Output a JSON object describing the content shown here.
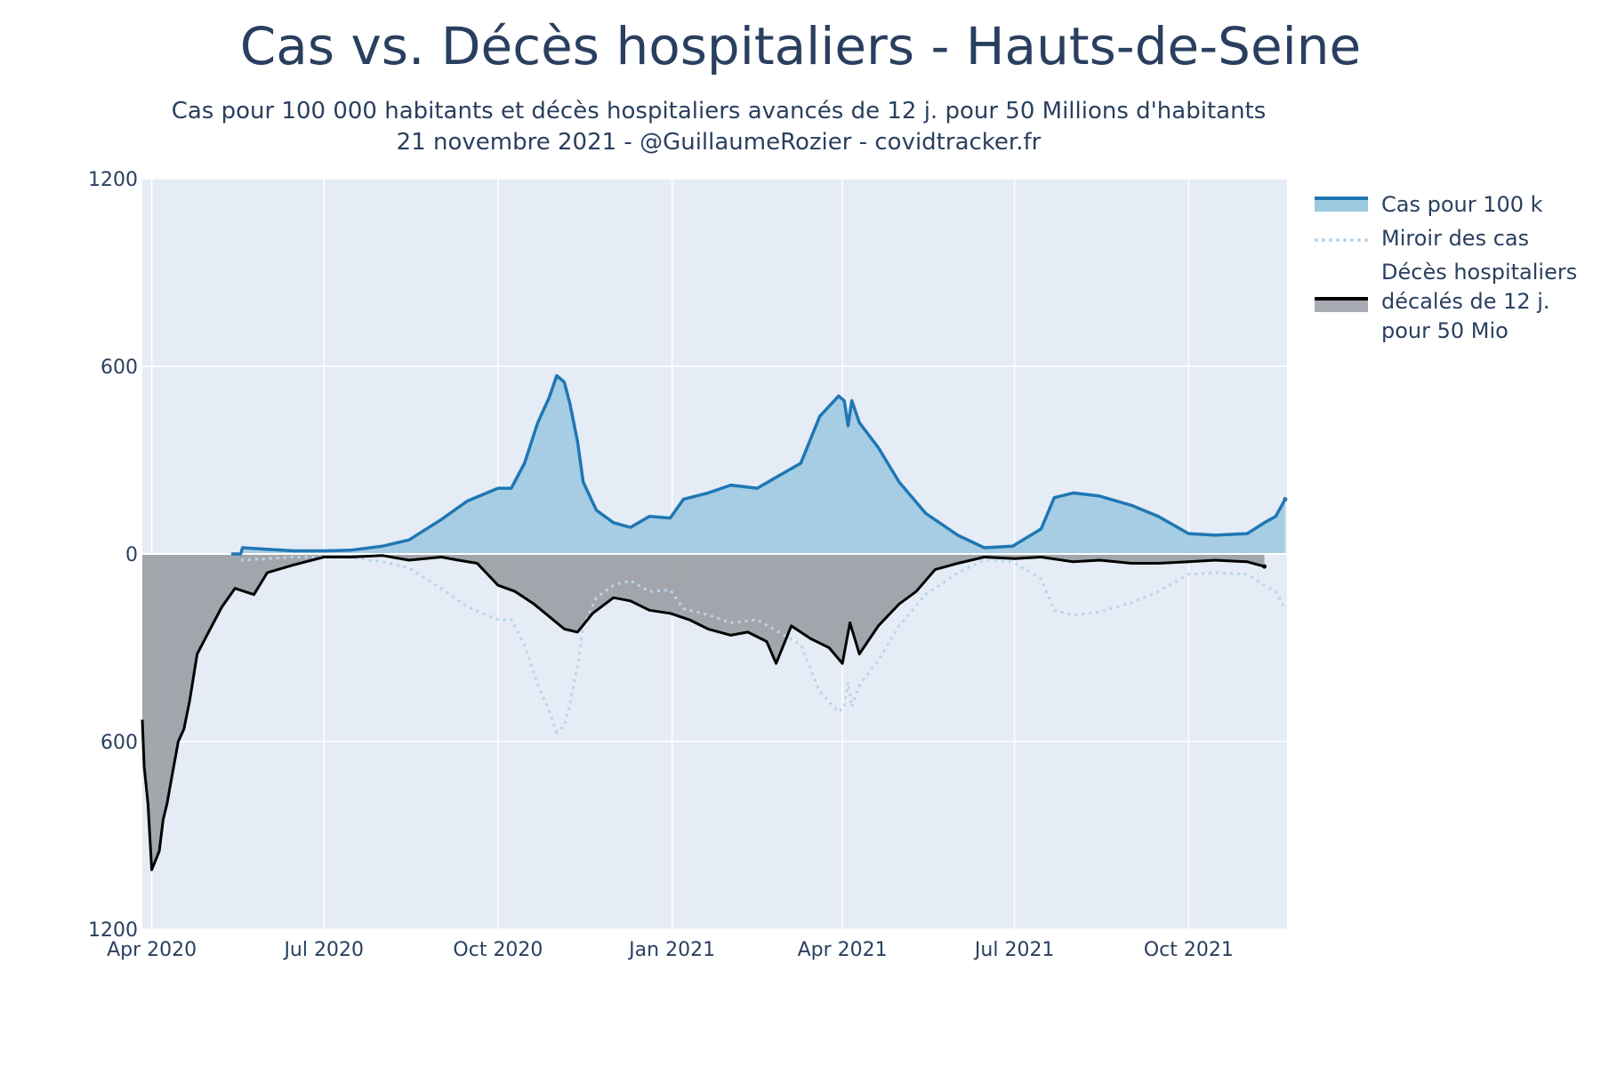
{
  "title": "Cas vs. Décès hospitaliers - Hauts-de-Seine",
  "subtitle_line1": "Cas pour 100 000 habitants et décès hospitaliers avancés de 12 j. pour 50 Millions d'habitants",
  "subtitle_line2": "21 novembre 2021 - @GuillaumeRozier - covidtracker.fr",
  "legend": {
    "cases": "Cas pour 100 k",
    "mirror": "Miroir des cas",
    "deaths_line1": "Décès hospitaliers",
    "deaths_line2": "décalés de 12 j.",
    "deaths_line3": "pour 50 Mio"
  },
  "colors": {
    "plot_bg": "#e5ecf6",
    "cases_line": "#1f77b4",
    "cases_fill": "#9ecae1",
    "mirror_line": "#b8d4ea",
    "deaths_line": "#000000",
    "deaths_fill": "#9a9ea4",
    "text": "#2a3f5f"
  },
  "chart_data": {
    "type": "area",
    "x_axis": {
      "type": "date",
      "range": [
        "2020-03-27",
        "2021-11-22"
      ],
      "tick_labels": [
        "Apr 2020",
        "Jul 2020",
        "Oct 2020",
        "Jan 2021",
        "Apr 2021",
        "Jul 2021",
        "Oct 2021"
      ],
      "tick_dates": [
        "2020-04-01",
        "2020-07-01",
        "2020-10-01",
        "2021-01-01",
        "2021-04-01",
        "2021-07-01",
        "2021-10-01"
      ]
    },
    "y_axis": {
      "range": [
        -1200,
        1200
      ],
      "tick_values": [
        1200,
        600,
        0,
        -600,
        -1200
      ],
      "tick_labels": [
        "1200",
        "600",
        "0",
        "600",
        "1200"
      ]
    },
    "grid": true,
    "legend_position": "right",
    "series": [
      {
        "name": "Cas pour 100 k",
        "style": "line+fill",
        "points": [
          [
            "2020-05-13",
            0
          ],
          [
            "2020-05-18",
            0
          ],
          [
            "2020-05-19",
            20
          ],
          [
            "2020-06-01",
            15
          ],
          [
            "2020-06-15",
            10
          ],
          [
            "2020-07-01",
            10
          ],
          [
            "2020-07-15",
            12
          ],
          [
            "2020-08-01",
            25
          ],
          [
            "2020-08-15",
            45
          ],
          [
            "2020-09-01",
            110
          ],
          [
            "2020-09-15",
            170
          ],
          [
            "2020-10-01",
            210
          ],
          [
            "2020-10-08",
            210
          ],
          [
            "2020-10-15",
            290
          ],
          [
            "2020-10-22",
            420
          ],
          [
            "2020-10-28",
            500
          ],
          [
            "2020-11-01",
            570
          ],
          [
            "2020-11-05",
            550
          ],
          [
            "2020-11-08",
            480
          ],
          [
            "2020-11-12",
            360
          ],
          [
            "2020-11-15",
            230
          ],
          [
            "2020-11-22",
            140
          ],
          [
            "2020-12-01",
            100
          ],
          [
            "2020-12-10",
            85
          ],
          [
            "2020-12-20",
            120
          ],
          [
            "2020-12-31",
            115
          ],
          [
            "2021-01-07",
            175
          ],
          [
            "2021-01-20",
            195
          ],
          [
            "2021-02-01",
            220
          ],
          [
            "2021-02-15",
            210
          ],
          [
            "2021-02-25",
            245
          ],
          [
            "2021-03-10",
            290
          ],
          [
            "2021-03-20",
            440
          ],
          [
            "2021-03-30",
            505
          ],
          [
            "2021-04-02",
            490
          ],
          [
            "2021-04-04",
            410
          ],
          [
            "2021-04-06",
            490
          ],
          [
            "2021-04-10",
            420
          ],
          [
            "2021-04-20",
            340
          ],
          [
            "2021-05-01",
            230
          ],
          [
            "2021-05-15",
            130
          ],
          [
            "2021-06-01",
            60
          ],
          [
            "2021-06-15",
            20
          ],
          [
            "2021-06-30",
            25
          ],
          [
            "2021-07-15",
            80
          ],
          [
            "2021-07-22",
            180
          ],
          [
            "2021-08-01",
            195
          ],
          [
            "2021-08-15",
            185
          ],
          [
            "2021-09-01",
            155
          ],
          [
            "2021-09-15",
            120
          ],
          [
            "2021-10-01",
            65
          ],
          [
            "2021-10-15",
            60
          ],
          [
            "2021-11-01",
            65
          ],
          [
            "2021-11-10",
            100
          ],
          [
            "2021-11-16",
            120
          ],
          [
            "2021-11-21",
            175
          ]
        ]
      },
      {
        "name": "Miroir des cas",
        "style": "dotted",
        "points": [
          [
            "2020-05-13",
            0
          ],
          [
            "2020-05-18",
            0
          ],
          [
            "2020-05-19",
            -20
          ],
          [
            "2020-06-01",
            -15
          ],
          [
            "2020-06-15",
            -10
          ],
          [
            "2020-07-01",
            -10
          ],
          [
            "2020-07-15",
            -12
          ],
          [
            "2020-08-01",
            -25
          ],
          [
            "2020-08-15",
            -45
          ],
          [
            "2020-09-01",
            -110
          ],
          [
            "2020-09-15",
            -170
          ],
          [
            "2020-10-01",
            -210
          ],
          [
            "2020-10-08",
            -210
          ],
          [
            "2020-10-15",
            -290
          ],
          [
            "2020-10-22",
            -420
          ],
          [
            "2020-10-28",
            -500
          ],
          [
            "2020-11-01",
            -570
          ],
          [
            "2020-11-05",
            -550
          ],
          [
            "2020-11-08",
            -480
          ],
          [
            "2020-11-12",
            -360
          ],
          [
            "2020-11-15",
            -230
          ],
          [
            "2020-11-22",
            -140
          ],
          [
            "2020-12-01",
            -100
          ],
          [
            "2020-12-10",
            -85
          ],
          [
            "2020-12-20",
            -120
          ],
          [
            "2020-12-31",
            -115
          ],
          [
            "2021-01-07",
            -175
          ],
          [
            "2021-01-20",
            -195
          ],
          [
            "2021-02-01",
            -220
          ],
          [
            "2021-02-15",
            -210
          ],
          [
            "2021-02-25",
            -245
          ],
          [
            "2021-03-10",
            -290
          ],
          [
            "2021-03-20",
            -440
          ],
          [
            "2021-03-30",
            -505
          ],
          [
            "2021-04-02",
            -490
          ],
          [
            "2021-04-04",
            -410
          ],
          [
            "2021-04-06",
            -490
          ],
          [
            "2021-04-10",
            -420
          ],
          [
            "2021-04-20",
            -340
          ],
          [
            "2021-05-01",
            -230
          ],
          [
            "2021-05-15",
            -130
          ],
          [
            "2021-06-01",
            -60
          ],
          [
            "2021-06-15",
            -20
          ],
          [
            "2021-06-30",
            -25
          ],
          [
            "2021-07-15",
            -80
          ],
          [
            "2021-07-22",
            -180
          ],
          [
            "2021-08-01",
            -195
          ],
          [
            "2021-08-15",
            -185
          ],
          [
            "2021-09-01",
            -155
          ],
          [
            "2021-09-15",
            -120
          ],
          [
            "2021-10-01",
            -65
          ],
          [
            "2021-10-15",
            -60
          ],
          [
            "2021-11-01",
            -65
          ],
          [
            "2021-11-10",
            -100
          ],
          [
            "2021-11-16",
            -120
          ],
          [
            "2021-11-21",
            -175
          ]
        ]
      },
      {
        "name": "Décès hospitaliers décalés de 12 j. pour 50 Mio",
        "style": "line+fill",
        "points": [
          [
            "2020-03-27",
            -530
          ],
          [
            "2020-03-28",
            -680
          ],
          [
            "2020-03-30",
            -800
          ],
          [
            "2020-04-01",
            -1010
          ],
          [
            "2020-04-03",
            -980
          ],
          [
            "2020-04-05",
            -950
          ],
          [
            "2020-04-07",
            -850
          ],
          [
            "2020-04-09",
            -800
          ],
          [
            "2020-04-12",
            -700
          ],
          [
            "2020-04-15",
            -600
          ],
          [
            "2020-04-18",
            -560
          ],
          [
            "2020-04-21",
            -470
          ],
          [
            "2020-04-25",
            -320
          ],
          [
            "2020-05-01",
            -250
          ],
          [
            "2020-05-08",
            -170
          ],
          [
            "2020-05-15",
            -110
          ],
          [
            "2020-05-25",
            -130
          ],
          [
            "2020-06-01",
            -60
          ],
          [
            "2020-06-15",
            -35
          ],
          [
            "2020-07-01",
            -10
          ],
          [
            "2020-07-15",
            -10
          ],
          [
            "2020-08-01",
            -5
          ],
          [
            "2020-08-15",
            -20
          ],
          [
            "2020-09-01",
            -10
          ],
          [
            "2020-09-10",
            -20
          ],
          [
            "2020-09-20",
            -30
          ],
          [
            "2020-10-01",
            -100
          ],
          [
            "2020-10-10",
            -120
          ],
          [
            "2020-10-20",
            -160
          ],
          [
            "2020-10-28",
            -200
          ],
          [
            "2020-11-05",
            -240
          ],
          [
            "2020-11-12",
            -250
          ],
          [
            "2020-11-20",
            -190
          ],
          [
            "2020-12-01",
            -140
          ],
          [
            "2020-12-10",
            -150
          ],
          [
            "2020-12-20",
            -180
          ],
          [
            "2020-12-31",
            -190
          ],
          [
            "2021-01-10",
            -210
          ],
          [
            "2021-01-20",
            -240
          ],
          [
            "2021-02-01",
            -260
          ],
          [
            "2021-02-10",
            -250
          ],
          [
            "2021-02-20",
            -280
          ],
          [
            "2021-02-25",
            -350
          ],
          [
            "2021-03-05",
            -230
          ],
          [
            "2021-03-15",
            -270
          ],
          [
            "2021-03-25",
            -300
          ],
          [
            "2021-04-01",
            -350
          ],
          [
            "2021-04-05",
            -220
          ],
          [
            "2021-04-10",
            -320
          ],
          [
            "2021-04-20",
            -230
          ],
          [
            "2021-05-01",
            -160
          ],
          [
            "2021-05-10",
            -120
          ],
          [
            "2021-05-20",
            -50
          ],
          [
            "2021-06-01",
            -30
          ],
          [
            "2021-06-15",
            -10
          ],
          [
            "2021-07-01",
            -15
          ],
          [
            "2021-07-15",
            -10
          ],
          [
            "2021-08-01",
            -25
          ],
          [
            "2021-08-15",
            -20
          ],
          [
            "2021-09-01",
            -30
          ],
          [
            "2021-09-15",
            -30
          ],
          [
            "2021-10-01",
            -25
          ],
          [
            "2021-10-15",
            -20
          ],
          [
            "2021-11-01",
            -25
          ],
          [
            "2021-11-10",
            -40
          ]
        ]
      }
    ]
  }
}
